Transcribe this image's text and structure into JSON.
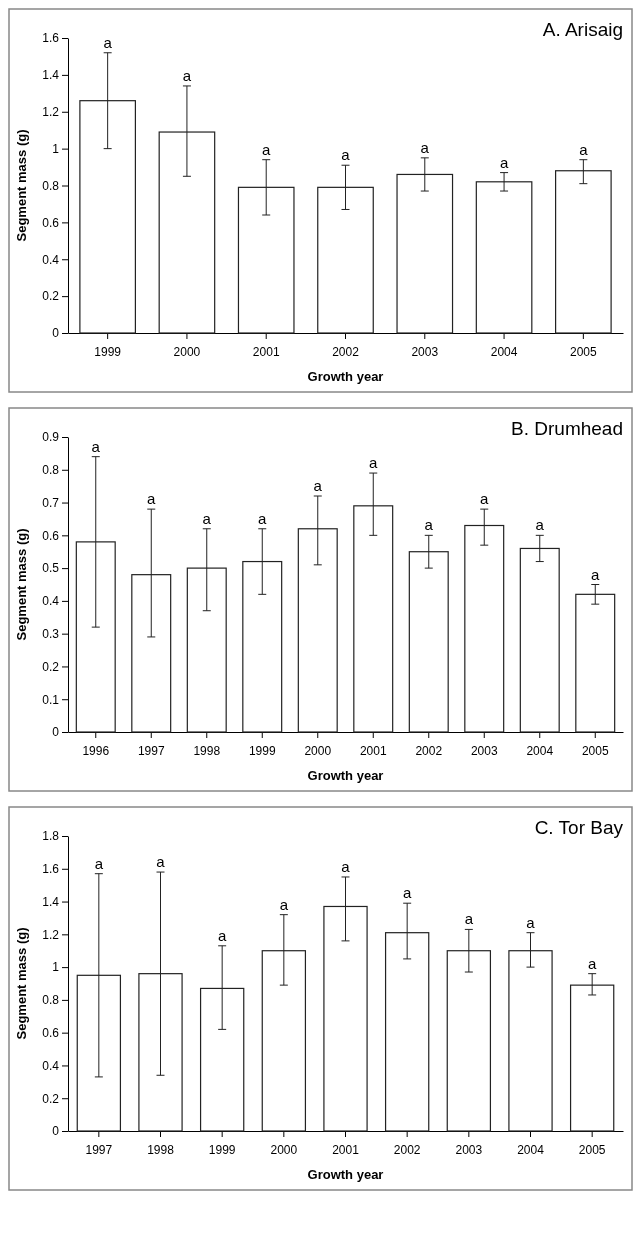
{
  "chart_data": [
    {
      "type": "bar",
      "title": "A. Arisaig",
      "xlabel": "Growth year",
      "ylabel": "Segment mass (g)",
      "categories": [
        "1999",
        "2000",
        "2001",
        "2002",
        "2003",
        "2004",
        "2005"
      ],
      "values": [
        1.26,
        1.09,
        0.79,
        0.79,
        0.86,
        0.82,
        0.88
      ],
      "errors": [
        [
          1.0,
          1.52
        ],
        [
          0.85,
          1.34
        ],
        [
          0.64,
          0.94
        ],
        [
          0.67,
          0.91
        ],
        [
          0.77,
          0.95
        ],
        [
          0.77,
          0.87
        ],
        [
          0.81,
          0.94
        ]
      ],
      "color": "#ffffff",
      "ylim": [
        0,
        1.6
      ],
      "yticks": [
        0,
        0.2,
        0.4,
        0.6,
        0.8,
        1,
        1.2,
        1.4,
        1.6
      ],
      "grid": false,
      "annotations": [
        {
          "text": "a",
          "x": "1999",
          "y": 1.52
        },
        {
          "text": "a",
          "x": "2000",
          "y": 1.34
        },
        {
          "text": "a",
          "x": "2001",
          "y": 0.94
        },
        {
          "text": "a",
          "x": "2002",
          "y": 0.91
        },
        {
          "text": "a",
          "x": "2003",
          "y": 0.95
        },
        {
          "text": "a",
          "x": "2004",
          "y": 0.87
        },
        {
          "text": "a",
          "x": "2005",
          "y": 0.94
        }
      ]
    },
    {
      "type": "bar",
      "title": "B. Drumhead",
      "xlabel": "Growth year",
      "ylabel": "Segment mass (g)",
      "categories": [
        "1996",
        "1997",
        "1998",
        "1999",
        "2000",
        "2001",
        "2002",
        "2003",
        "2004",
        "2005"
      ],
      "values": [
        0.58,
        0.48,
        0.5,
        0.52,
        0.62,
        0.69,
        0.55,
        0.63,
        0.56,
        0.42
      ],
      "errors": [
        [
          0.32,
          0.84
        ],
        [
          0.29,
          0.68
        ],
        [
          0.37,
          0.62
        ],
        [
          0.42,
          0.62
        ],
        [
          0.51,
          0.72
        ],
        [
          0.6,
          0.79
        ],
        [
          0.5,
          0.6
        ],
        [
          0.57,
          0.68
        ],
        [
          0.52,
          0.6
        ],
        [
          0.39,
          0.45
        ]
      ],
      "color": "#ffffff",
      "ylim": [
        0,
        0.9
      ],
      "yticks": [
        0,
        0.1,
        0.2,
        0.3,
        0.4,
        0.5,
        0.6,
        0.7,
        0.8,
        0.9
      ],
      "grid": false,
      "annotations": [
        {
          "text": "a",
          "x": "1996",
          "y": 0.84
        },
        {
          "text": "a",
          "x": "1997",
          "y": 0.68
        },
        {
          "text": "a",
          "x": "1998",
          "y": 0.62
        },
        {
          "text": "a",
          "x": "1999",
          "y": 0.62
        },
        {
          "text": "a",
          "x": "2000",
          "y": 0.72
        },
        {
          "text": "a",
          "x": "2001",
          "y": 0.79
        },
        {
          "text": "a",
          "x": "2002",
          "y": 0.6
        },
        {
          "text": "a",
          "x": "2003",
          "y": 0.68
        },
        {
          "text": "a",
          "x": "2004",
          "y": 0.6
        },
        {
          "text": "a",
          "x": "2005",
          "y": 0.45
        }
      ]
    },
    {
      "type": "bar",
      "title": "C. Tor Bay",
      "xlabel": "Growth year",
      "ylabel": "Segment mass (g)",
      "categories": [
        "1997",
        "1998",
        "1999",
        "2000",
        "2001",
        "2002",
        "2003",
        "2004",
        "2005"
      ],
      "values": [
        0.95,
        0.96,
        0.87,
        1.1,
        1.37,
        1.21,
        1.1,
        1.1,
        0.89
      ],
      "errors": [
        [
          0.33,
          1.57
        ],
        [
          0.34,
          1.58
        ],
        [
          0.62,
          1.13
        ],
        [
          0.89,
          1.32
        ],
        [
          1.16,
          1.55
        ],
        [
          1.05,
          1.39
        ],
        [
          0.97,
          1.23
        ],
        [
          1.0,
          1.21
        ],
        [
          0.83,
          0.96
        ]
      ],
      "color": "#ffffff",
      "ylim": [
        0,
        1.8
      ],
      "yticks": [
        0,
        0.2,
        0.4,
        0.6,
        0.8,
        1,
        1.2,
        1.4,
        1.6,
        1.8
      ],
      "grid": false,
      "annotations": [
        {
          "text": "a",
          "x": "1997",
          "y": 1.57
        },
        {
          "text": "a",
          "x": "1998",
          "y": 1.58
        },
        {
          "text": "a",
          "x": "1999",
          "y": 1.13
        },
        {
          "text": "a",
          "x": "2000",
          "y": 1.32
        },
        {
          "text": "a",
          "x": "2001",
          "y": 1.55
        },
        {
          "text": "a",
          "x": "2002",
          "y": 1.39
        },
        {
          "text": "a",
          "x": "2003",
          "y": 1.23
        },
        {
          "text": "a",
          "x": "2004",
          "y": 1.21
        },
        {
          "text": "a",
          "x": "2005",
          "y": 0.96
        }
      ]
    }
  ]
}
